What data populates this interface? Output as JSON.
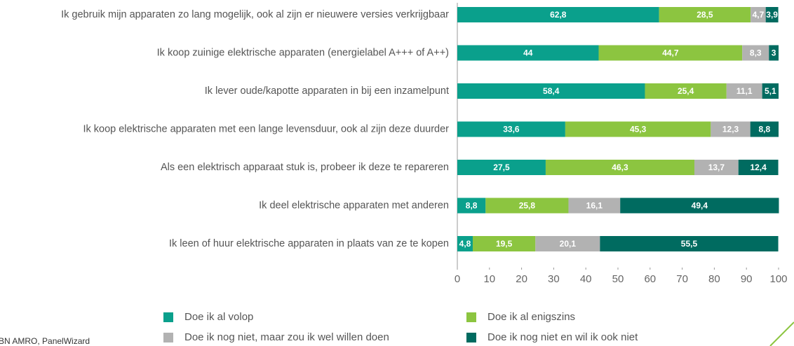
{
  "chart_data": {
    "type": "stacked_barh",
    "categories": [
      "Ik gebruik mijn apparaten zo lang mogelijk, ook al zijn er nieuwere versies verkrijgbaar",
      "Ik koop zuinige elektrische apparaten (energielabel A+++ of A++)",
      "Ik lever oude/kapotte apparaten in bij een inzamelpunt",
      "Ik koop elektrische apparaten met een lange levensduur, ook al zijn deze duurder",
      "Als een elektrisch apparaat stuk is, probeer ik deze te repareren",
      "Ik deel elektrische apparaten met anderen",
      "Ik leen of huur elektrische apparaten in plaats van ze te kopen"
    ],
    "series": [
      {
        "name": "Doe ik al volop",
        "color": "#0aa08c",
        "values": [
          62.8,
          44,
          58.4,
          33.6,
          27.5,
          8.8,
          4.8
        ],
        "value_labels": [
          "62,8",
          "44",
          "58,4",
          "33,6",
          "27,5",
          "8,8",
          "4,8"
        ]
      },
      {
        "name": "Doe ik al enigszins",
        "color": "#8cc540",
        "values": [
          28.5,
          44.7,
          25.4,
          45.3,
          46.3,
          25.8,
          19.5
        ],
        "value_labels": [
          "28,5",
          "44,7",
          "25,4",
          "45,3",
          "46,3",
          "25,8",
          "19,5"
        ]
      },
      {
        "name": "Doe ik nog niet, maar zou ik wel willen doen",
        "color": "#b2b2b2",
        "values": [
          4.7,
          8.3,
          11.1,
          12.3,
          13.7,
          16.1,
          20.1
        ],
        "value_labels": [
          "4,7",
          "8,3",
          "11,1",
          "12,3",
          "13,7",
          "16,1",
          "20,1"
        ]
      },
      {
        "name": "Doe ik nog niet en wil ik ook niet",
        "color": "#006b60",
        "values": [
          3.9,
          3,
          5.1,
          8.8,
          12.4,
          49.4,
          55.5
        ],
        "value_labels": [
          "3,9",
          "3",
          "5,1",
          "8,8",
          "12,4",
          "49,4",
          "55,5"
        ]
      }
    ],
    "xlim": [
      0,
      100
    ],
    "xticks": [
      0,
      10,
      20,
      30,
      40,
      50,
      60,
      70,
      80,
      90,
      100
    ],
    "source": "BN AMRO, PanelWizard"
  }
}
